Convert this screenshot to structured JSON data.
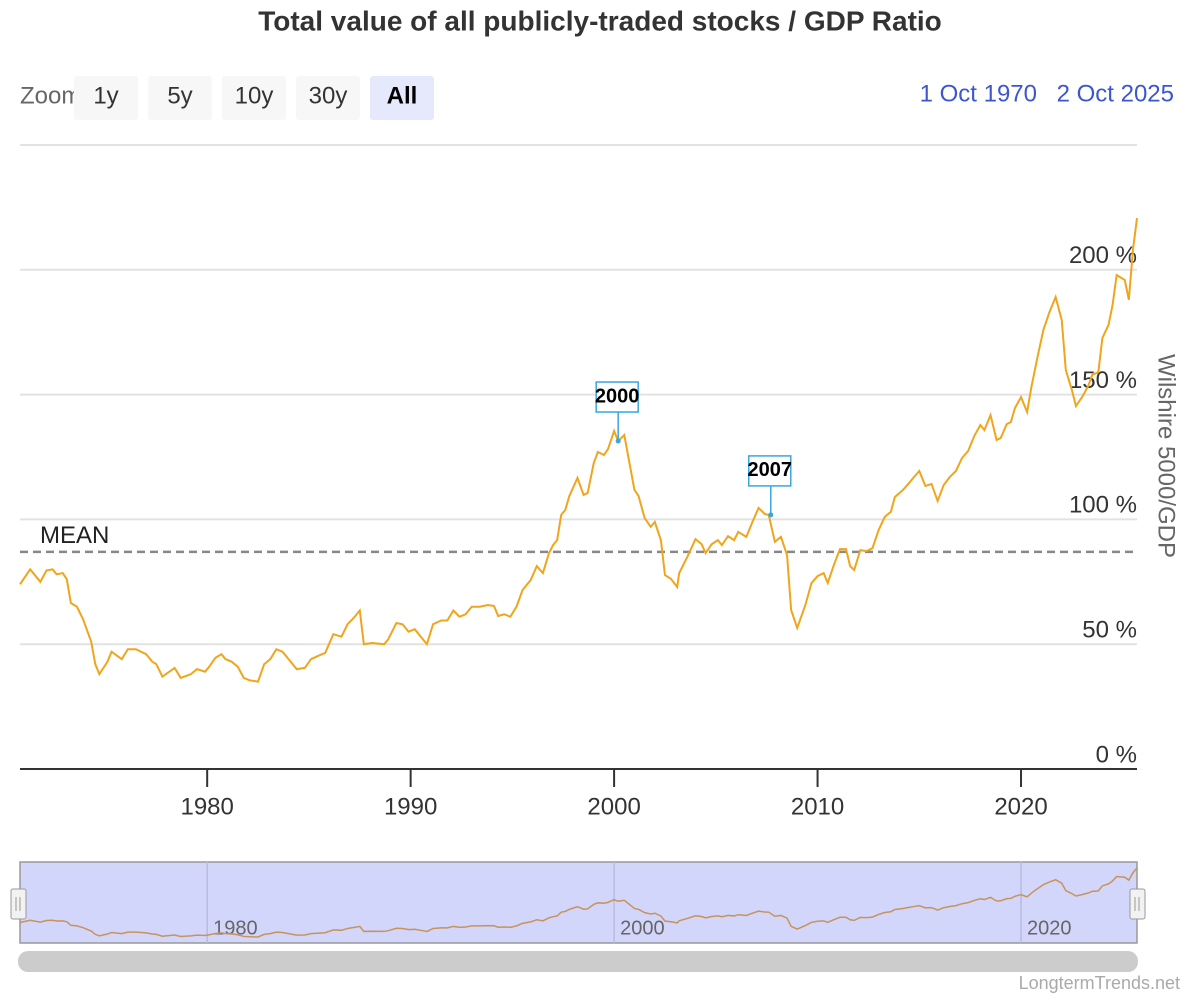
{
  "chart_data": {
    "type": "line",
    "title": "Total value of all publicly-traded stocks / GDP Ratio",
    "zoom_label": "Zoom",
    "zoom_buttons": [
      "1y",
      "5y",
      "10y",
      "30y",
      "All"
    ],
    "selected_button": "All",
    "range_from": "1 Oct 1970",
    "range_to": "2 Oct 2025",
    "y_axis_title": "Wilshire 5000/GDP",
    "credit": "LongtermTrends.net",
    "color": "#f0a51c",
    "xlim": [
      1970.8,
      2025.7
    ],
    "xticks": [
      1980,
      1990,
      2000,
      2010,
      2020
    ],
    "ylim": [
      0,
      250
    ],
    "yticks": [
      {
        "value": 0,
        "label": "0 %"
      },
      {
        "value": 50,
        "label": "50 %"
      },
      {
        "value": 100,
        "label": "100 %"
      },
      {
        "value": 150,
        "label": "150 %"
      },
      {
        "value": 200,
        "label": "200 %"
      }
    ],
    "grid": true,
    "mean": {
      "label": "MEAN",
      "value": 87
    },
    "flags": [
      {
        "label": "2000",
        "x": 2000.2,
        "value": 131.4
      },
      {
        "label": "2007",
        "x": 2007.7,
        "value": 101.8
      }
    ],
    "navigator": {
      "xticks": [
        1980,
        2000,
        2020
      ]
    },
    "x": [
      1970.8,
      1971.3,
      1971.8,
      1972.1,
      1972.4,
      1972.6,
      1972.9,
      1973.1,
      1973.3,
      1973.6,
      1973.9,
      1974.3,
      1974.5,
      1974.7,
      1975.1,
      1975.3,
      1975.8,
      1976.1,
      1976.5,
      1977.0,
      1977.3,
      1977.5,
      1977.8,
      1978.4,
      1978.7,
      1979.2,
      1979.5,
      1979.9,
      1980.1,
      1980.4,
      1980.7,
      1980.9,
      1981.2,
      1981.5,
      1981.8,
      1982.1,
      1982.5,
      1982.8,
      1983.1,
      1983.4,
      1983.7,
      1984.0,
      1984.4,
      1984.8,
      1985.1,
      1985.5,
      1985.8,
      1986.2,
      1986.6,
      1986.9,
      1987.2,
      1987.5,
      1987.7,
      1988.1,
      1988.7,
      1988.9,
      1989.3,
      1989.6,
      1989.9,
      1990.2,
      1990.5,
      1990.8,
      1991.1,
      1991.5,
      1991.8,
      1992.1,
      1992.4,
      1992.7,
      1993.0,
      1993.4,
      1993.8,
      1994.1,
      1994.3,
      1994.6,
      1994.9,
      1995.2,
      1995.5,
      1995.9,
      1996.2,
      1996.5,
      1996.8,
      1997.0,
      1997.2,
      1997.4,
      1997.6,
      1997.8,
      1998.2,
      1998.5,
      1998.7,
      1999.0,
      1999.2,
      1999.5,
      1999.7,
      2000.0,
      2000.2,
      2000.5,
      2000.8,
      2001.0,
      2001.2,
      2001.5,
      2001.8,
      2002.0,
      2002.3,
      2002.5,
      2002.8,
      2003.1,
      2003.2,
      2003.6,
      2004.0,
      2004.3,
      2004.5,
      2004.8,
      2005.1,
      2005.3,
      2005.6,
      2005.9,
      2006.1,
      2006.5,
      2006.8,
      2007.1,
      2007.4,
      2007.6,
      2007.9,
      2008.2,
      2008.5,
      2008.7,
      2009.0,
      2009.4,
      2009.7,
      2010.0,
      2010.3,
      2010.5,
      2010.8,
      2011.1,
      2011.4,
      2011.6,
      2011.8,
      2012.1,
      2012.4,
      2012.7,
      2013.0,
      2013.3,
      2013.6,
      2013.8,
      2014.2,
      2014.5,
      2014.7,
      2015.0,
      2015.3,
      2015.6,
      2015.9,
      2016.2,
      2016.5,
      2016.8,
      2017.1,
      2017.4,
      2017.7,
      2018.0,
      2018.2,
      2018.5,
      2018.8,
      2019.0,
      2019.3,
      2019.5,
      2019.7,
      2020.0,
      2020.3,
      2020.5,
      2020.8,
      2021.1,
      2021.4,
      2021.7,
      2022.0,
      2022.2,
      2022.5,
      2022.7,
      2023.0,
      2023.3,
      2023.5,
      2023.8,
      2024.0,
      2024.3,
      2024.5,
      2024.7,
      2025.1,
      2025.3,
      2025.5,
      2025.7
    ],
    "values": [
      74,
      80,
      75,
      79.5,
      80,
      78,
      78.5,
      76,
      66.5,
      65,
      60,
      51,
      42,
      38,
      43,
      47,
      44,
      48,
      48,
      46,
      43,
      42,
      37,
      40.5,
      36.5,
      38,
      40,
      39,
      41,
      44.5,
      46,
      44,
      43,
      41,
      36.5,
      35.5,
      35,
      42,
      44,
      48,
      47,
      44,
      40,
      40.5,
      44,
      45.5,
      46.5,
      54,
      53,
      58,
      60.5,
      63.5,
      50,
      50.5,
      50,
      52,
      58.5,
      58,
      55,
      56,
      53,
      50,
      58,
      59.5,
      59.5,
      63.5,
      61,
      62,
      65,
      65,
      65.7,
      65.3,
      61.3,
      62,
      61,
      65,
      71.7,
      75.7,
      81.3,
      78.5,
      86.5,
      89.7,
      91.7,
      101.8,
      103.8,
      109.4,
      116.6,
      109.8,
      110.6,
      122.6,
      127,
      125.8,
      128.2,
      135.4,
      131.4,
      133.8,
      120.6,
      111.8,
      109.4,
      100.6,
      97,
      99,
      91.7,
      77.7,
      76.1,
      72.9,
      78.5,
      85,
      92.1,
      90.1,
      86.5,
      90.1,
      91.7,
      89.7,
      93.3,
      91.7,
      95,
      93,
      99,
      104.6,
      102.2,
      101.8,
      91,
      93,
      85.7,
      63.7,
      56.5,
      65.7,
      74.5,
      77.3,
      78.5,
      74.5,
      81.7,
      88.1,
      88.1,
      81.3,
      79.7,
      87.7,
      87.3,
      88.5,
      95.7,
      101,
      103,
      109,
      111.8,
      114.6,
      116.6,
      119.4,
      113.4,
      114.2,
      107.4,
      113.8,
      117,
      119.4,
      124.6,
      127.4,
      133.4,
      137.8,
      135.8,
      141.8,
      131.8,
      132.6,
      138.2,
      139,
      144.6,
      149,
      143,
      152.6,
      164.7,
      175.9,
      183.1,
      189.1,
      179.9,
      159.9,
      151.8,
      145.4,
      149,
      153.4,
      157.9,
      159,
      172.7,
      177.9,
      185.9,
      197.9,
      195.9,
      188,
      208,
      220.7
    ]
  }
}
